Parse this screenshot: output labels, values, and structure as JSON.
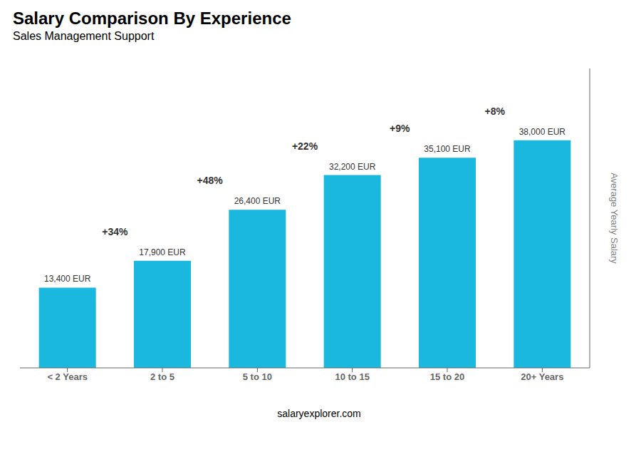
{
  "chart_data": {
    "type": "bar",
    "title": "Salary Comparison By Experience",
    "subtitle": "Sales Management Support",
    "categories": [
      "< 2 Years",
      "2 to 5",
      "5 to 10",
      "10 to 15",
      "15 to 20",
      "20+ Years"
    ],
    "values": [
      13400,
      17900,
      26400,
      32200,
      35100,
      38000
    ],
    "value_labels": [
      "13,400 EUR",
      "17,900 EUR",
      "26,400 EUR",
      "32,200 EUR",
      "35,100 EUR",
      "38,000 EUR"
    ],
    "data_labels": true,
    "annotations": [
      "+34%",
      "+48%",
      "+22%",
      "+9%",
      "+8%"
    ],
    "ylabel": "Average Yearly Salary",
    "footer": "salaryexplorer.com",
    "color": "#1ab8de",
    "ylim": [
      0,
      50000
    ],
    "tick_labels": "x",
    "grid": false
  }
}
